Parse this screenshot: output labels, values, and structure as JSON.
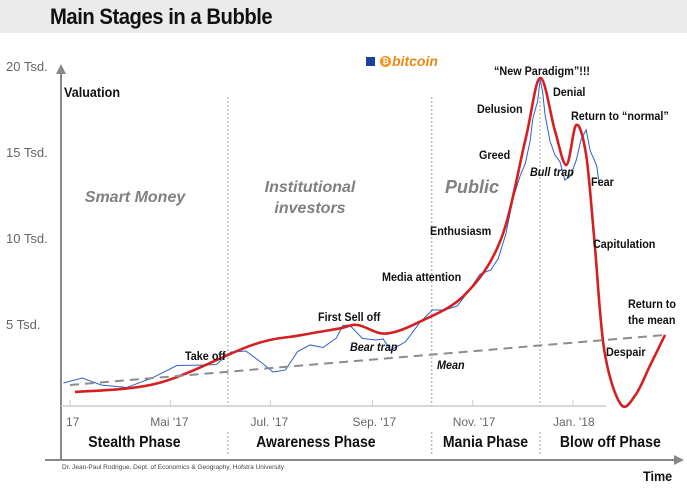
{
  "title": "Main Stages in a Bubble",
  "legend": {
    "label": "bitcoin",
    "marker_color": "#1f3f9f",
    "logo_color": "#f7931a",
    "text_color": "#e58a0e"
  },
  "credit": "Dr. Jean-Paul Rodrigue, Dept. of Economics & Geography, Hofstra University",
  "groups": [
    "Smart Money",
    "Institutional",
    "investors",
    "Public"
  ],
  "phases": [
    "Stealth Phase",
    "Awareness Phase",
    "Mania Phase",
    "Blow off Phase"
  ],
  "annotations": {
    "take_off": "Take off",
    "first_sell_off": "First Sell off",
    "bear_trap": "Bear trap",
    "mean": "Mean",
    "media_attention": "Media attention",
    "enthusiasm": "Enthusiasm",
    "greed": "Greed",
    "delusion": "Delusion",
    "new_paradigm": "“New Paradigm”!!!",
    "denial": "Denial",
    "return_to_normal": "Return to “normal”",
    "bull_trap": "Bull trap",
    "fear": "Fear",
    "capitulation": "Capitulation",
    "return_to_the_mean_1": "Return to",
    "return_to_the_mean_2": "the mean",
    "despair": "Despair"
  },
  "chart_data": {
    "type": "line",
    "title": "Main Stages in a Bubble",
    "xlabel": "Time",
    "ylabel": "Valuation",
    "y_tick_labels": [
      "5 Tsd.",
      "10 Tsd.",
      "15 Tsd.",
      "20 Tsd."
    ],
    "y_ticks": [
      5000,
      10000,
      15000,
      20000
    ],
    "x_tick_labels": [
      "17",
      "Mai '17",
      "Jul. '17",
      "Sep. '17",
      "Nov. '17",
      "Jan. '18"
    ],
    "x_ticks": [
      "2017-03-01",
      "2017-05-01",
      "2017-07-01",
      "2017-09-01",
      "2017-11-01",
      "2018-01-01"
    ],
    "xlim": [
      "2017-02-25",
      "2018-03-07"
    ],
    "ylim": [
      0,
      20500
    ],
    "grid": false,
    "phase_boundaries": [
      "2017-06-05",
      "2017-10-07",
      "2017-12-12"
    ],
    "series": [
      {
        "name": "bitcoin",
        "color": "#2f5fc8",
        "style": "solid-thin",
        "points": [
          [
            "2017-02-25",
            1630
          ],
          [
            "2017-03-20",
            1510
          ],
          [
            "2017-04-20",
            1920
          ],
          [
            "2017-05-20",
            2670
          ],
          [
            "2017-06-07",
            3430
          ],
          [
            "2017-06-25",
            2850
          ],
          [
            "2017-07-10",
            2380
          ],
          [
            "2017-07-25",
            3840
          ],
          [
            "2017-08-10",
            4240
          ],
          [
            "2017-08-18",
            5000
          ],
          [
            "2017-09-03",
            4130
          ],
          [
            "2017-09-12",
            3550
          ],
          [
            "2017-09-30",
            5170
          ],
          [
            "2017-10-15",
            5870
          ],
          [
            "2017-10-30",
            7030
          ],
          [
            "2017-11-12",
            8200
          ],
          [
            "2017-11-21",
            10230
          ],
          [
            "2017-11-30",
            13720
          ],
          [
            "2017-12-06",
            15750
          ],
          [
            "2017-12-09",
            17500
          ],
          [
            "2017-12-12",
            19250
          ],
          [
            "2017-12-15",
            17210
          ],
          [
            "2017-12-21",
            14880
          ],
          [
            "2017-12-27",
            13430
          ],
          [
            "2018-01-03",
            14590
          ],
          [
            "2018-01-09",
            16340
          ],
          [
            "2018-01-14",
            14590
          ],
          [
            "2018-01-17",
            13140
          ]
        ]
      },
      {
        "color": "#d42020",
        "style": "solid-thick",
        "points": [
          [
            "2017-03-04",
            1100
          ],
          [
            "2017-04-24",
            1630
          ],
          [
            "2017-06-20",
            3840
          ],
          [
            "2017-07-19",
            4400
          ],
          [
            "2017-08-12",
            4800
          ],
          [
            "2017-08-23",
            5000
          ],
          [
            "2017-09-09",
            4500
          ],
          [
            "2017-09-30",
            5200
          ],
          [
            "2017-10-27",
            6740
          ],
          [
            "2017-11-18",
            9940
          ],
          [
            "2017-12-03",
            15750
          ],
          [
            "2017-12-12",
            19360
          ],
          [
            "2017-12-21",
            16300
          ],
          [
            "2017-12-28",
            14300
          ],
          [
            "2018-01-03",
            16630
          ],
          [
            "2018-01-09",
            14880
          ],
          [
            "2018-01-14",
            9940
          ],
          [
            "2018-01-20",
            3550
          ],
          [
            "2018-01-30",
            400
          ],
          [
            "2018-02-08",
            930
          ],
          [
            "2018-02-17",
            2670
          ],
          [
            "2018-02-26",
            4420
          ]
        ]
      },
      {
        "name": "Mean",
        "color": "#8c8c8c",
        "style": "dashed",
        "points": [
          [
            "2017-03-01",
            1510
          ],
          [
            "2018-02-26",
            4420
          ]
        ]
      }
    ]
  }
}
